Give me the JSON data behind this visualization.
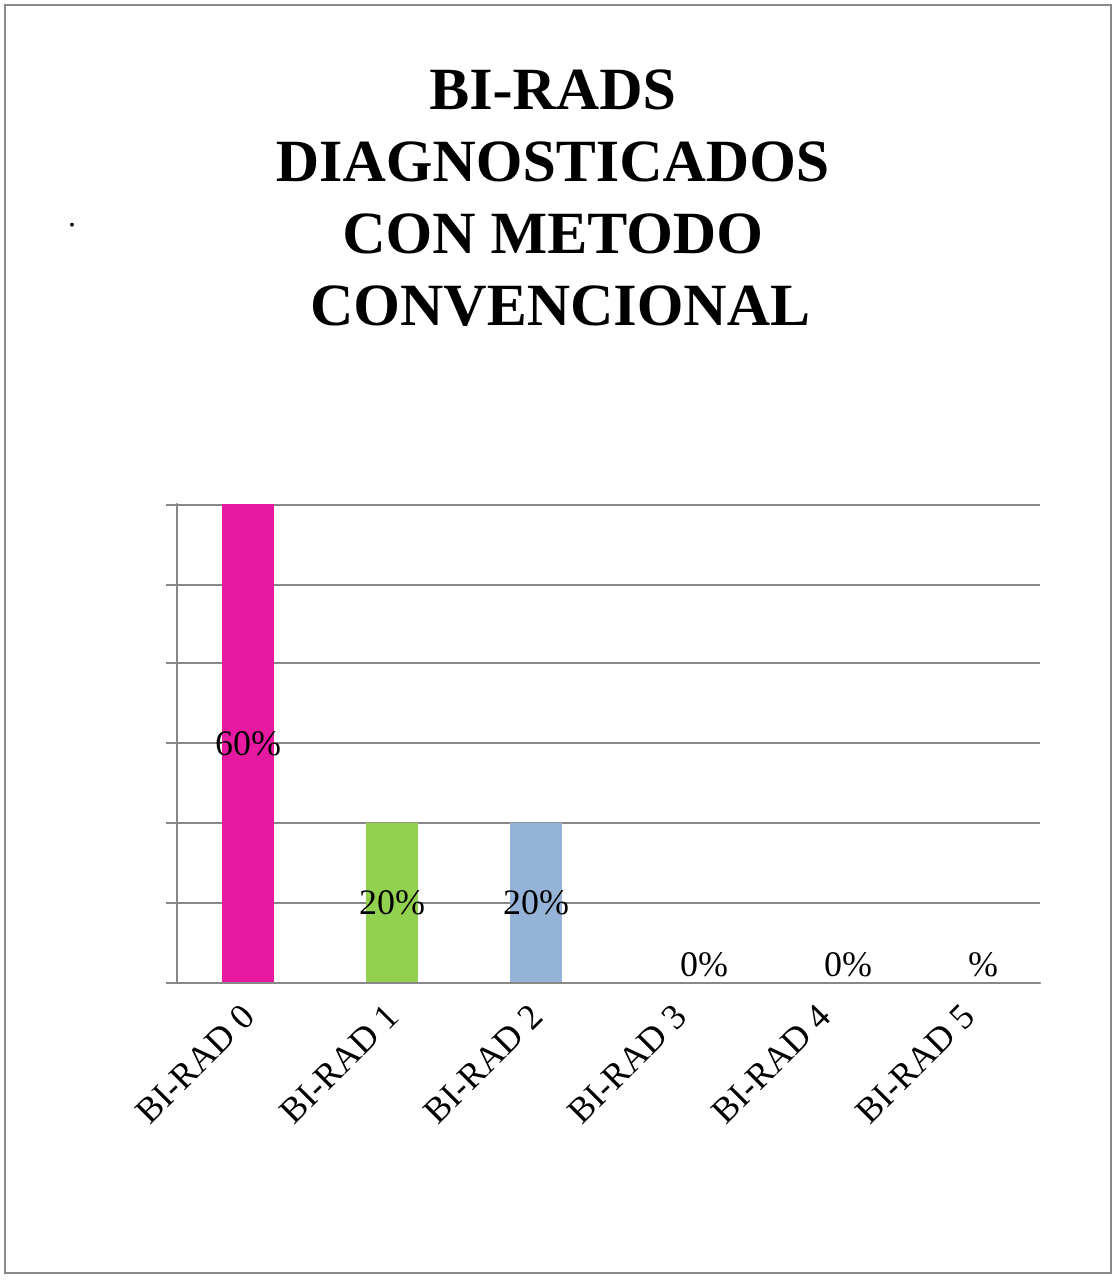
{
  "chart_data": {
    "type": "bar",
    "title": "BI-RADS DIAGNOSTICADOS CON METODO CONVENCIONAL",
    "categories": [
      "BI-RAD 0",
      "BI-RAD 1",
      "BI-RAD 2",
      "BI-RAD 3",
      "BI-RAD 4",
      "BI-RAD 5"
    ],
    "values": [
      60,
      20,
      20,
      0,
      0,
      0
    ],
    "colors": [
      "#e619a0",
      "#92d050",
      "#95b3d7",
      "#4f81bd",
      "#4f81bd",
      "#4f81bd"
    ],
    "value_labels": [
      "60%",
      "20%",
      "20%",
      "0%",
      "0%",
      "%"
    ],
    "ylim": [
      0,
      60
    ],
    "yticks": [
      {
        "value": 0,
        "label": null
      },
      {
        "value": 10,
        "label": null
      },
      {
        "value": 20,
        "label": null
      },
      {
        "value": 30,
        "label": null
      },
      {
        "value": 40,
        "label": null
      },
      {
        "value": 50,
        "label": null
      },
      {
        "value": 60,
        "label": null
      }
    ],
    "tick_labels": "x",
    "grid": "y",
    "annotations": [
      "."
    ]
  }
}
